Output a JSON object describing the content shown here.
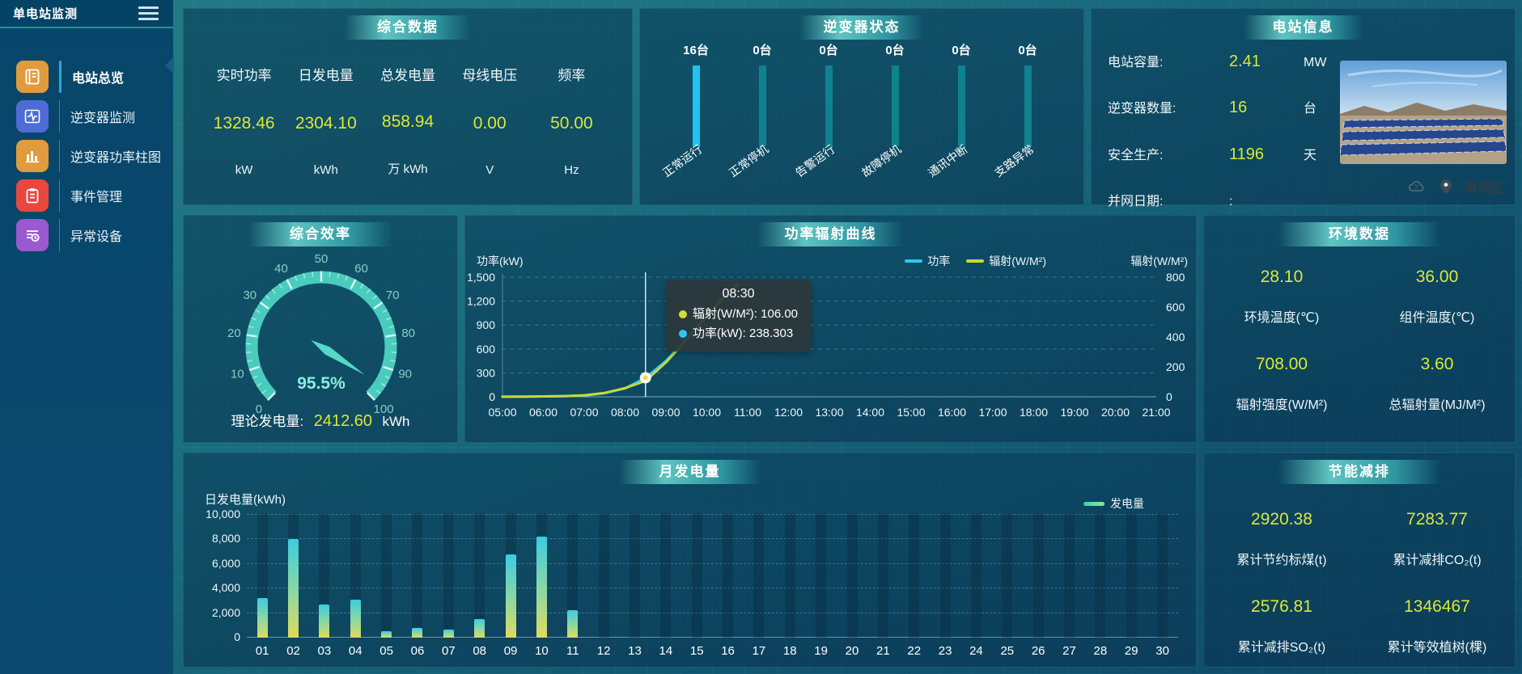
{
  "sidebar": {
    "title": "单电站监测",
    "items": [
      {
        "label": "电站总览",
        "icon": "journal-icon",
        "color": "#e09b3d",
        "active": true
      },
      {
        "label": "逆变器监测",
        "icon": "waveform-icon",
        "color": "#4f6bd6",
        "active": false
      },
      {
        "label": "逆变器功率柱图",
        "icon": "bar-chart-icon",
        "color": "#e09b3d",
        "active": false
      },
      {
        "label": "事件管理",
        "icon": "clipboard-icon",
        "color": "#e8473f",
        "active": false
      },
      {
        "label": "异常设备",
        "icon": "device-list-icon",
        "color": "#9b59d0",
        "active": false
      }
    ]
  },
  "panels": {
    "summary": {
      "title": "综合数据",
      "stats": [
        {
          "label": "实时功率",
          "value": "1328.46",
          "unit": "kW"
        },
        {
          "label": "日发电量",
          "value": "2304.10",
          "unit": "kWh"
        },
        {
          "label": "总发电量",
          "value": "858.94",
          "unit": "万 kWh"
        },
        {
          "label": "母线电压",
          "value": "0.00",
          "unit": "V"
        },
        {
          "label": "频率",
          "value": "50.00",
          "unit": "Hz"
        }
      ]
    },
    "inverter_status": {
      "title": "逆变器状态",
      "bars": [
        {
          "count": "16台",
          "label": "正常运行",
          "highlight": true
        },
        {
          "count": "0台",
          "label": "正常停机",
          "highlight": false
        },
        {
          "count": "0台",
          "label": "告警运行",
          "highlight": false
        },
        {
          "count": "0台",
          "label": "故障停机",
          "highlight": false
        },
        {
          "count": "0台",
          "label": "通讯中断",
          "highlight": false
        },
        {
          "count": "0台",
          "label": "支路异常",
          "highlight": false
        }
      ]
    },
    "station_info": {
      "title": "电站信息",
      "rows": [
        {
          "label": "电站容量:",
          "value": "2.41",
          "unit": "MW"
        },
        {
          "label": "逆变器数量:",
          "value": "16",
          "unit": "台"
        },
        {
          "label": "安全生产:",
          "value": "1196",
          "unit": "天"
        },
        {
          "label": "并网日期:",
          "value": ":",
          "unit": ""
        }
      ],
      "location": "黄埔区"
    },
    "efficiency": {
      "title": "综合效率",
      "footer_label": "理论发电量:",
      "footer_value": "2412.60",
      "footer_unit": "kWh"
    },
    "power_radiation": {
      "title": "功率辐射曲线"
    },
    "environment": {
      "title": "环境数据",
      "stats": [
        {
          "value": "28.10",
          "label": "环境温度(℃)"
        },
        {
          "value": "36.00",
          "label": "组件温度(℃)"
        },
        {
          "value": "708.00",
          "label": "辐射强度(W/M²)"
        },
        {
          "value": "3.60",
          "label": "总辐射量(MJ/M²)"
        }
      ]
    },
    "monthly": {
      "title": "月发电量"
    },
    "saving": {
      "title": "节能减排",
      "stats": [
        {
          "value": "2920.38",
          "label": "累计节约标煤(t)"
        },
        {
          "value": "7283.77",
          "label": "累计减排CO₂(t)"
        },
        {
          "value": "2576.81",
          "label": "累计减排SO₂(t)"
        },
        {
          "value": "1346467",
          "label": "累计等效植树(棵)"
        }
      ]
    }
  },
  "chart_data": [
    {
      "id": "efficiency_gauge",
      "type": "gauge",
      "title": "综合效率",
      "min": 0,
      "max": 100,
      "value": 95.5,
      "unit": "%",
      "tick_labels": [
        0,
        10,
        20,
        30,
        40,
        50,
        60,
        70,
        80,
        90,
        100
      ],
      "arc_color": "#4dd3c3",
      "value_color": "#8beede"
    },
    {
      "id": "power_radiation",
      "type": "line",
      "title": "功率辐射曲线",
      "x_hours": [
        5,
        5.5,
        6,
        6.5,
        7,
        7.5,
        8,
        8.5,
        9,
        9.5,
        10,
        10.5,
        10.75
      ],
      "x_ticks": [
        "05:00",
        "06:00",
        "07:00",
        "08:00",
        "09:00",
        "10:00",
        "11:00",
        "12:00",
        "13:00",
        "14:00",
        "15:00",
        "16:00",
        "17:00",
        "18:00",
        "19:00",
        "20:00",
        "21:00"
      ],
      "series": [
        {
          "name": "功率",
          "axis": "left",
          "color": "#2ec7f4",
          "values": [
            2,
            3,
            5,
            8,
            15,
            45,
            105,
            238.303,
            450,
            720,
            1020,
            1310,
            1400
          ]
        },
        {
          "name": "辐射(W/M²)",
          "axis": "right",
          "color": "#c9d937",
          "values": [
            0,
            1,
            3,
            5,
            10,
            26,
            58,
            106,
            230,
            380,
            540,
            690,
            755
          ]
        }
      ],
      "left_axis": {
        "label": "功率(kW)",
        "min": 0,
        "max": 1500,
        "ticks": [
          0,
          300,
          600,
          900,
          1200,
          1500
        ]
      },
      "right_axis": {
        "label": "辐射(W/M²)",
        "min": 0,
        "max": 800,
        "ticks": [
          0,
          200,
          400,
          600,
          800
        ]
      },
      "tooltip": {
        "x_hour": 8.5,
        "time": "08:30",
        "rows": [
          {
            "text": "辐射(W/M²): 106.00",
            "color": "#d4dd3b"
          },
          {
            "text": "功率(kW): 238.303",
            "color": "#2ec7f4"
          }
        ]
      },
      "legend": [
        "功率",
        "辐射(W/M²)"
      ],
      "grid": true,
      "legend_position": "top-right"
    },
    {
      "id": "monthly_generation",
      "type": "bar",
      "title": "月发电量",
      "ylabel": "日发电量(kWh)",
      "legend": "发电量",
      "categories": [
        "01",
        "02",
        "03",
        "04",
        "05",
        "06",
        "07",
        "08",
        "09",
        "10",
        "11",
        "12",
        "13",
        "14",
        "15",
        "16",
        "17",
        "18",
        "19",
        "20",
        "21",
        "22",
        "23",
        "24",
        "25",
        "26",
        "27",
        "28",
        "29",
        "30"
      ],
      "values": [
        3200,
        8000,
        2700,
        3100,
        500,
        800,
        650,
        1500,
        6800,
        8200,
        2250,
        0,
        0,
        0,
        0,
        0,
        0,
        0,
        0,
        0,
        0,
        0,
        0,
        0,
        0,
        0,
        0,
        0,
        0,
        0
      ],
      "ylim": [
        0,
        10000
      ],
      "yticks": [
        0,
        2000,
        4000,
        6000,
        8000,
        10000
      ],
      "grid": true
    },
    {
      "id": "inverter_status_bars",
      "type": "bar",
      "title": "逆变器状态",
      "categories": [
        "正常运行",
        "正常停机",
        "告警运行",
        "故障停机",
        "通讯中断",
        "支路异常"
      ],
      "values": [
        16,
        0,
        0,
        0,
        0,
        0
      ],
      "unit": "台"
    }
  ],
  "colors": {
    "accent_value": "#d9e837",
    "power_line": "#2ec7f4",
    "radiation_line": "#c9d937",
    "inverter_bar_active": "#1fc3f3",
    "inverter_bar_idle": "#0f838d",
    "gauge_arc": "#4dd3c3",
    "nav_active_indicator": "#28a7e0"
  }
}
